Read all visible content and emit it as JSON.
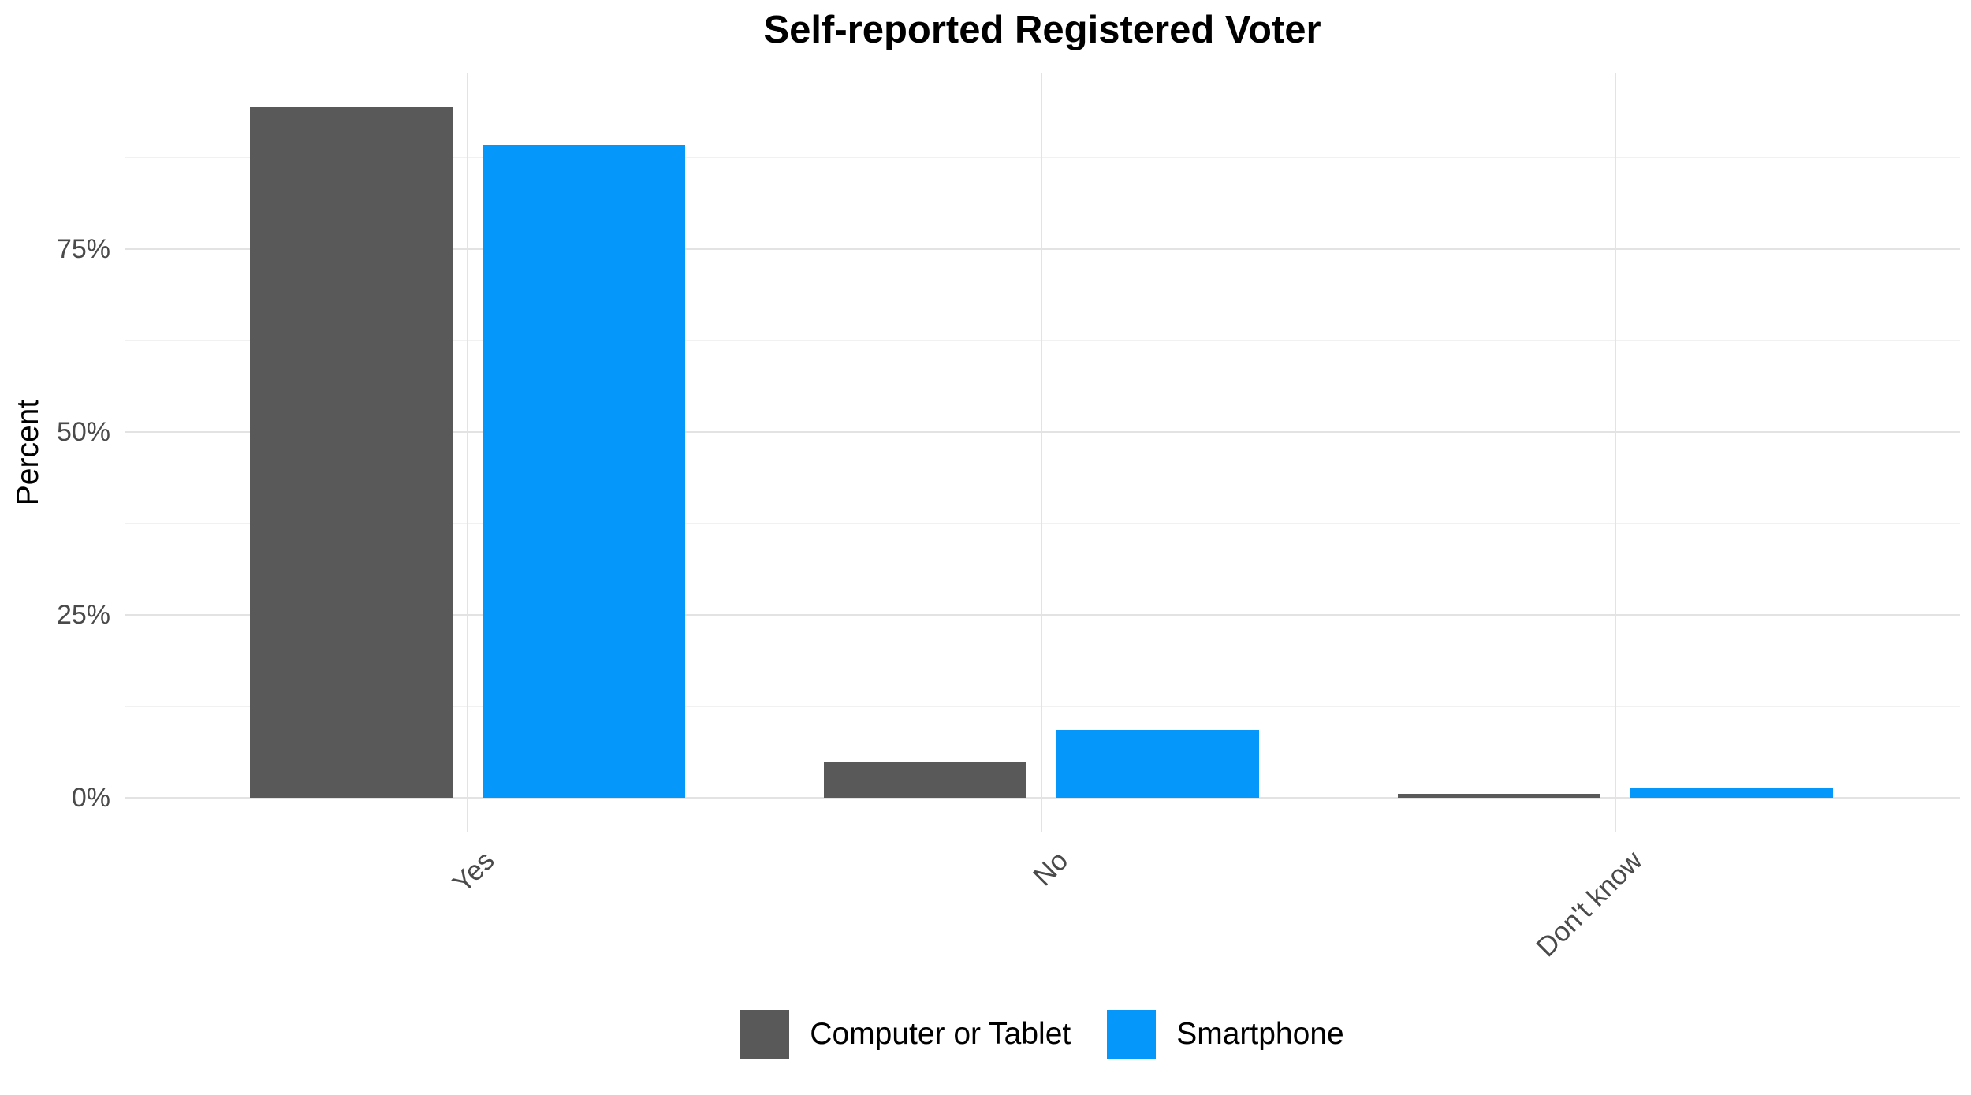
{
  "chart_data": {
    "type": "bar",
    "title": "Self-reported Registered Voter",
    "xlabel": "",
    "ylabel": "Percent",
    "categories": [
      "Yes",
      "No",
      "Don't know"
    ],
    "series": [
      {
        "name": "Computer or Tablet",
        "color": "#595959",
        "values": [
          94.4,
          4.8,
          0.5
        ]
      },
      {
        "name": "Smartphone",
        "color": "#0598FA",
        "values": [
          89.2,
          9.3,
          1.4
        ]
      }
    ],
    "y_ticks": [
      {
        "value": 0,
        "label": "0%"
      },
      {
        "value": 25,
        "label": "25%"
      },
      {
        "value": 50,
        "label": "50%"
      },
      {
        "value": 75,
        "label": "75%"
      }
    ],
    "y_minor_ticks": [
      12.5,
      37.5,
      62.5,
      87.5
    ],
    "ylim": [
      0,
      100
    ],
    "grid": true,
    "legend_position": "bottom",
    "x_tick_rotation_deg": 45,
    "colors": {
      "background": "#FFFFFF",
      "grid_major": "#E3E3E3",
      "grid_minor": "#F1F1F1",
      "axis_text": "#4A4A4A",
      "title_text": "#000000"
    }
  }
}
